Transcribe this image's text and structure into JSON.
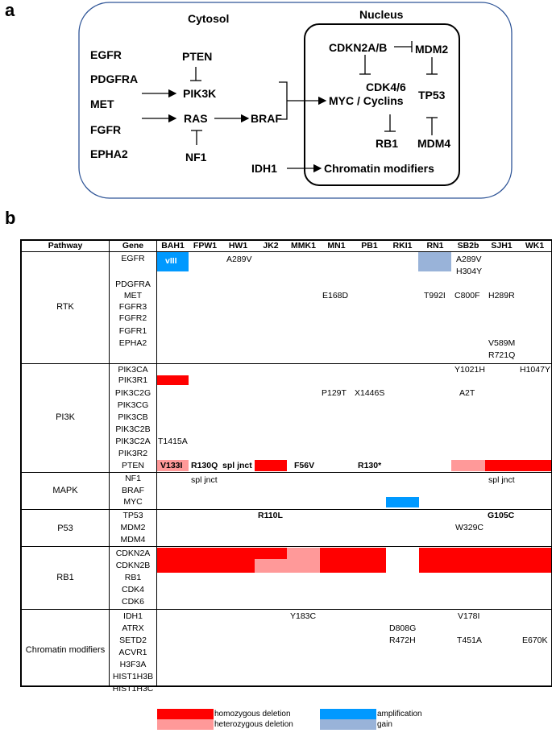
{
  "panel_a": {
    "letter": "a",
    "compartments": {
      "cytosol": "Cytosol",
      "nucleus": "Nucleus"
    },
    "nodes": {
      "egfr": "EGFR",
      "pdgfra": "PDGFRA",
      "met": "MET",
      "fgfr": "FGFR",
      "epha2": "EPHA2",
      "pten": "PTEN",
      "pik3k": "PIK3K",
      "ras": "RAS",
      "nf1": "NF1",
      "braf": "BRAF",
      "idh1": "IDH1",
      "cdkn2ab": "CDKN2A/B",
      "mdm2": "MDM2",
      "cdk46": "CDK4/6",
      "tp53": "TP53",
      "myc": "MYC / Cyclins",
      "rb1": "RB1",
      "mdm4": "MDM4",
      "chromatin": "Chromatin modifiers"
    }
  },
  "panel_b": {
    "letter": "b",
    "header": {
      "pathway": "Pathway",
      "gene": "Gene"
    },
    "samples": [
      "BAH1",
      "FPW1",
      "HW1",
      "JK2",
      "MMK1",
      "MN1",
      "PB1",
      "RKI1",
      "RN1",
      "SB2b",
      "SJH1",
      "WK1"
    ],
    "groups": [
      {
        "name": "RTK",
        "genes": [
          "EGFR",
          "",
          "PDGFRA",
          "MET",
          "FGFR3",
          "FGFR2",
          "FGFR1",
          "EPHA2",
          ""
        ]
      },
      {
        "name": "PI3K",
        "genes": [
          "PIK3CA",
          "PIK3R1",
          "PIK3C2G",
          "PIK3CG",
          "PIK3CB",
          "PIK3C2B",
          "PIK3C2A",
          "PIK3R2",
          "PTEN"
        ]
      },
      {
        "name": "MAPK",
        "genes": [
          "NF1",
          "BRAF",
          "MYC"
        ]
      },
      {
        "name": "P53",
        "genes": [
          "TP53",
          "MDM2",
          "MDM4"
        ]
      },
      {
        "name": "RB1",
        "genes": [
          "CDKN2A",
          "CDKN2B",
          "RB1",
          "CDK4",
          "CDK6"
        ]
      },
      {
        "name": "Chromatin modifiers",
        "genes": [
          "IDH1",
          "ATRX",
          "SETD2",
          "ACVR1",
          "H3F3A",
          "HIST1H3B",
          "HIST1H3C"
        ]
      }
    ],
    "mutations": {
      "bah1_egfr": "vIII",
      "hw1_egfr": "A289V",
      "sb2b_egfr_1": "A289V",
      "sb2b_egfr_2": "H304Y",
      "mn1_met": "E168D",
      "rn1_met": "T992I",
      "sb2b_met": "C800F",
      "sjh1_met": "H289R",
      "sjh1_epha2_1": "V589M",
      "sjh1_epha2_2": "R721Q",
      "sb2b_pik3ca": "Y1021H",
      "wk1_pik3ca": "H1047Y",
      "mn1_pik3c2g": "P129T",
      "pb1_pik3c2g": "X1446S",
      "sb2b_pik3c2g": "A2T",
      "bah1_pik3c2a": "T1415A",
      "bah1_pten": "V133I",
      "fpw1_pten": "R130Q",
      "hw1_pten": "spl jnct",
      "mmk1_pten": "F56V",
      "pb1_pten": "R130*",
      "fpw1_nf1": "spl jnct",
      "sjh1_nf1": "spl jnct",
      "jk2_tp53": "R110L",
      "sjh1_tp53": "G105C",
      "sb2b_mdm2": "W329C",
      "mmk1_idh1": "Y183C",
      "sb2b_idh1": "V178I",
      "rki1_atrx": "D808G",
      "rki1_setd2": "R472H",
      "sb2b_setd2": "T451A",
      "wk1_setd2": "E670K"
    },
    "legend": {
      "homozygous": {
        "label": "homozygous deletion",
        "color": "#ff0000"
      },
      "heterozygous": {
        "label": "heterozygous deletion",
        "color": "#ff9999"
      },
      "amplification": {
        "label": "amplification",
        "color": "#0099ff"
      },
      "gain": {
        "label": "gain",
        "color": "#99b3d9"
      }
    }
  }
}
